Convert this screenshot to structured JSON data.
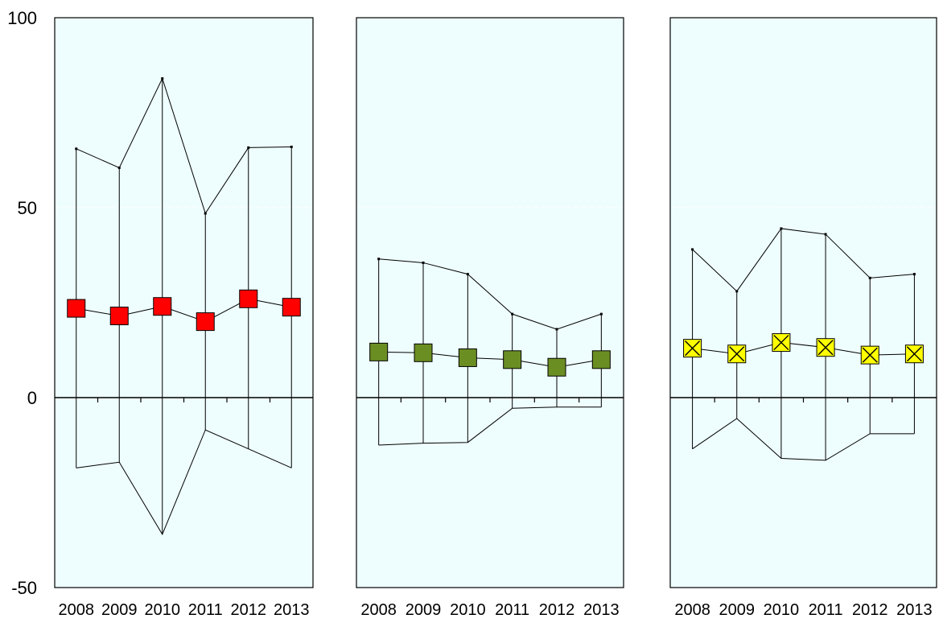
{
  "chart_data": {
    "type": "line",
    "ylim": [
      -50,
      100
    ],
    "yticks": [
      -50,
      0,
      50,
      100
    ],
    "categories": [
      "2008",
      "2009",
      "2010",
      "2011",
      "2012",
      "2013"
    ],
    "grid": true,
    "colors": {
      "panel_bg": "#eefdfd",
      "grid": "#ffffff",
      "axis": "#000000"
    },
    "panels": [
      {
        "marker": "square",
        "fill": "#ff0000",
        "values": [
          23.5,
          21.5,
          24,
          20,
          26,
          23.8
        ],
        "high": [
          65.5,
          60.5,
          84,
          48.5,
          65.8,
          66
        ],
        "low": [
          -18.5,
          -17,
          -36,
          -8.5,
          -13.5,
          -18.5
        ]
      },
      {
        "marker": "square",
        "fill": "#6b8e23",
        "values": [
          12,
          11.8,
          10.5,
          10,
          8,
          10
        ],
        "high": [
          36.5,
          35.5,
          32.5,
          22,
          18,
          22
        ],
        "low": [
          -12.5,
          -12,
          -11.8,
          -2.8,
          -2.5,
          -2.5
        ]
      },
      {
        "marker": "x-square",
        "fill": "#ffff00",
        "values": [
          13,
          11.5,
          14.5,
          13.2,
          11.2,
          11.5
        ],
        "high": [
          39,
          28,
          44.5,
          43,
          31.5,
          32.5
        ],
        "low": [
          -13.5,
          -5.5,
          -16,
          -16.5,
          -9.5,
          -9.5
        ]
      }
    ]
  }
}
